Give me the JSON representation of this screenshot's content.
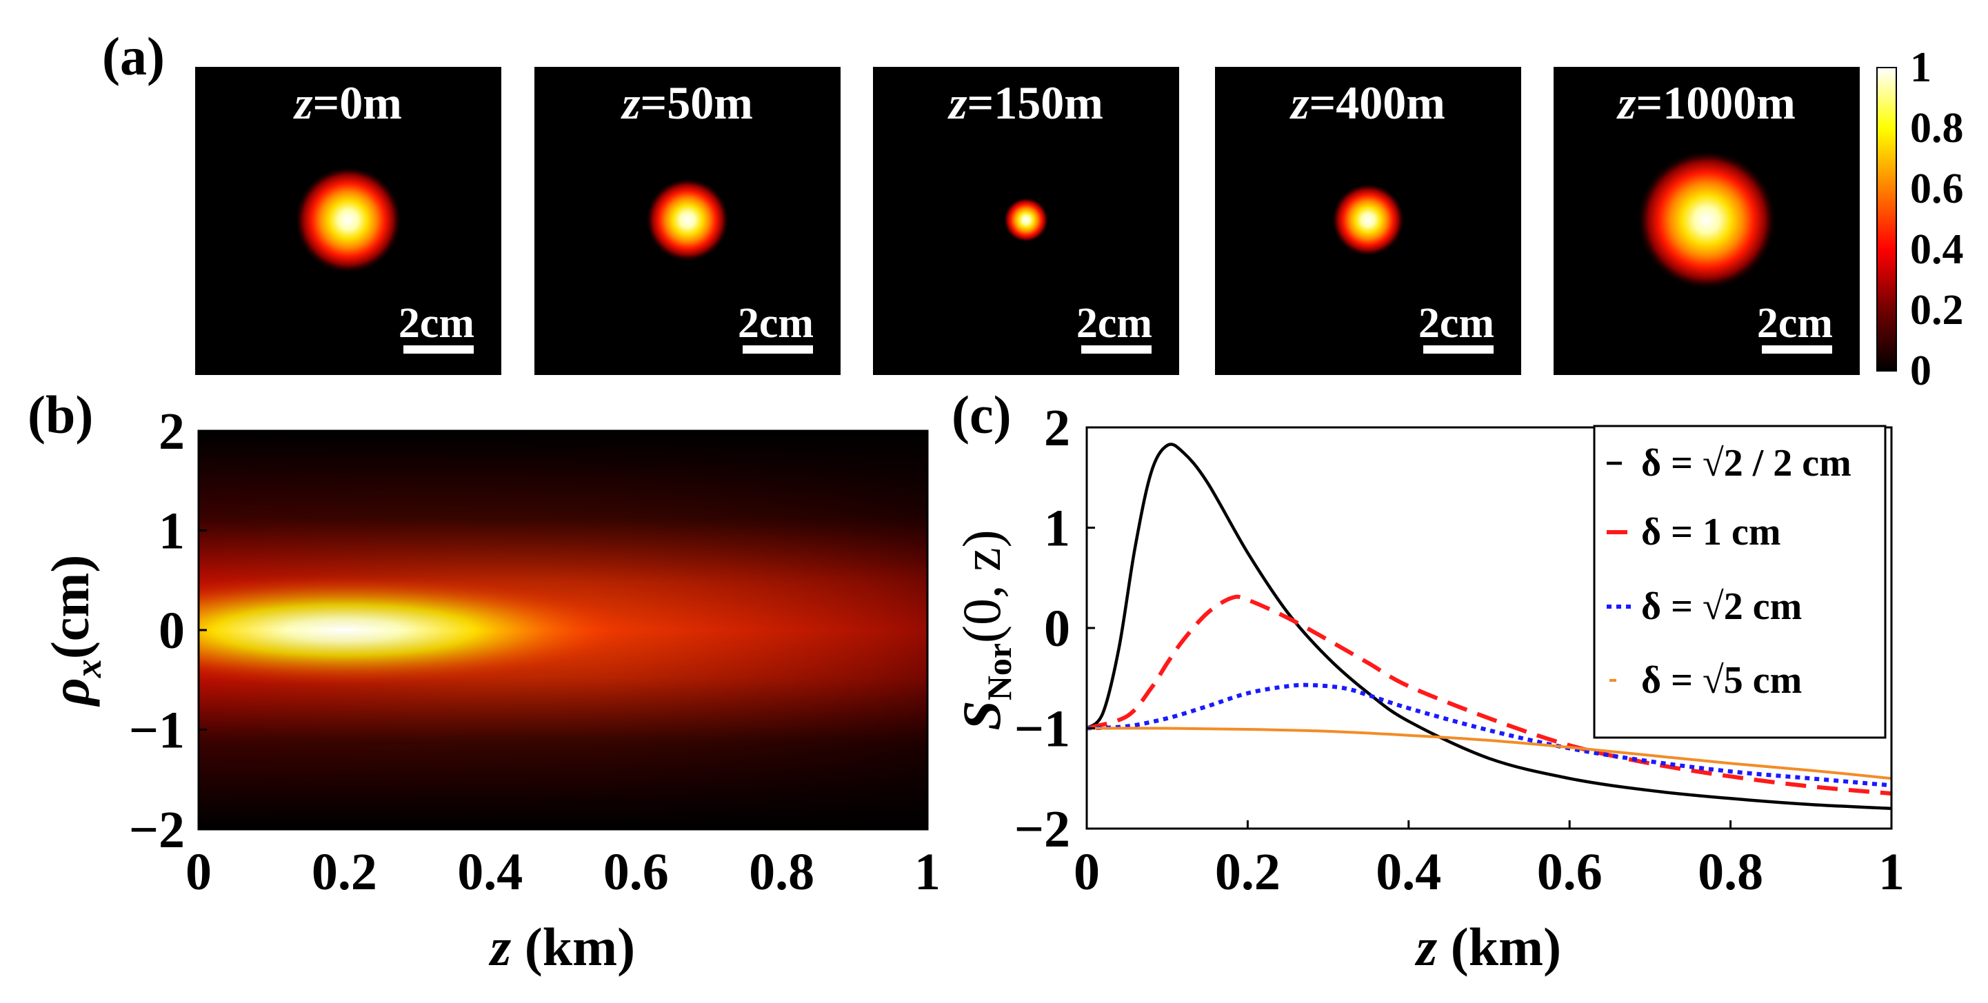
{
  "panel_labels": [
    "(a)",
    "(b)",
    "(c)"
  ],
  "panel_a": {
    "z_symbol": "z",
    "snapshots": [
      {
        "z_value": "=0m",
        "relative_spot_size": 1.0,
        "scale_bar": "2cm"
      },
      {
        "z_value": "=50m",
        "relative_spot_size": 0.78,
        "scale_bar": "2cm"
      },
      {
        "z_value": "=150m",
        "relative_spot_size": 0.42,
        "scale_bar": "2cm"
      },
      {
        "z_value": "=400m",
        "relative_spot_size": 0.68,
        "scale_bar": "2cm"
      },
      {
        "z_value": "=1000m",
        "relative_spot_size": 1.3,
        "scale_bar": "2cm"
      }
    ],
    "colorbar": {
      "ticks": [
        "1",
        "0.8",
        "0.6",
        "0.4",
        "0.2",
        "0"
      ],
      "range": [
        0,
        1
      ],
      "colormap": "hot"
    }
  },
  "chart_data": [
    {
      "type": "heatmap",
      "panel": "(b)",
      "xlabel": "z (km)",
      "ylabel": "ρx(cm)",
      "xlim": [
        0,
        1
      ],
      "ylim": [
        -2,
        2
      ],
      "xticks": [
        "0",
        "0.2",
        "0.4",
        "0.6",
        "0.8",
        "1"
      ],
      "yticks": [
        "2",
        "1",
        "0",
        "−1",
        "−2"
      ],
      "peak": {
        "z": 0.2,
        "rho": 0
      }
    },
    {
      "type": "line",
      "panel": "(c)",
      "xlabel": "z (km)",
      "ylabel": "S",
      "ylabel_sub": "Nor",
      "ylabel_args": "(0, z)",
      "xlim": [
        0,
        1
      ],
      "ylim": [
        -2,
        2
      ],
      "xticks": [
        "0",
        "0.2",
        "0.4",
        "0.6",
        "0.8",
        "1"
      ],
      "yticks": [
        "2",
        "1",
        "0",
        "−1",
        "−2"
      ],
      "series": [
        {
          "name": "δ = √2 / 2 cm",
          "color": "#000000",
          "style": "solid",
          "x": [
            0,
            0.02,
            0.04,
            0.06,
            0.08,
            0.1,
            0.12,
            0.15,
            0.2,
            0.25,
            0.3,
            0.35,
            0.4,
            0.5,
            0.6,
            0.7,
            0.8,
            0.9,
            1.0
          ],
          "y": [
            -1.0,
            -0.85,
            -0.2,
            0.8,
            1.55,
            1.82,
            1.75,
            1.45,
            0.75,
            0.15,
            -0.3,
            -0.65,
            -0.93,
            -1.3,
            -1.5,
            -1.62,
            -1.7,
            -1.76,
            -1.8
          ]
        },
        {
          "name": "δ = 1 cm",
          "color": "#ff1a1a",
          "style": "dashed",
          "x": [
            0,
            0.05,
            0.08,
            0.1,
            0.12,
            0.15,
            0.18,
            0.2,
            0.25,
            0.3,
            0.35,
            0.4,
            0.5,
            0.6,
            0.7,
            0.8,
            0.9,
            1.0
          ],
          "y": [
            -1.0,
            -0.88,
            -0.6,
            -0.35,
            -0.12,
            0.15,
            0.3,
            0.28,
            0.1,
            -0.12,
            -0.35,
            -0.58,
            -0.9,
            -1.17,
            -1.35,
            -1.48,
            -1.58,
            -1.65
          ]
        },
        {
          "name": "δ = √2 cm",
          "color": "#1a1aff",
          "style": "dotted",
          "x": [
            0,
            0.05,
            0.1,
            0.15,
            0.2,
            0.25,
            0.28,
            0.32,
            0.35,
            0.4,
            0.5,
            0.6,
            0.7,
            0.8,
            0.9,
            1.0
          ],
          "y": [
            -1.0,
            -0.98,
            -0.9,
            -0.78,
            -0.65,
            -0.58,
            -0.57,
            -0.6,
            -0.67,
            -0.8,
            -1.02,
            -1.2,
            -1.33,
            -1.43,
            -1.5,
            -1.57
          ]
        },
        {
          "name": "δ = √5 cm",
          "color": "#f28c28",
          "style": "solid-thin",
          "x": [
            0,
            0.1,
            0.2,
            0.3,
            0.4,
            0.5,
            0.6,
            0.7,
            0.8,
            0.9,
            1.0
          ],
          "y": [
            -1.0,
            -1.0,
            -1.01,
            -1.03,
            -1.07,
            -1.12,
            -1.19,
            -1.27,
            -1.35,
            -1.42,
            -1.5
          ]
        }
      ]
    }
  ]
}
